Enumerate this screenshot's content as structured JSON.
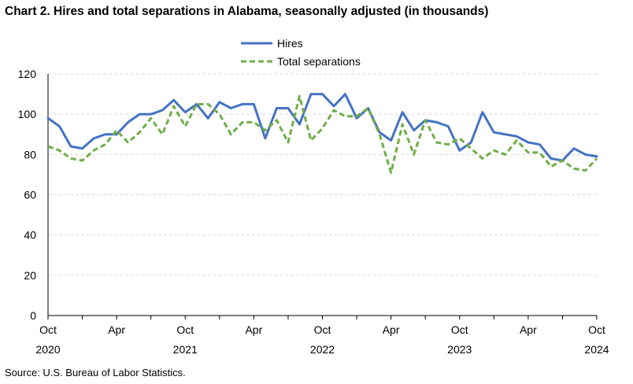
{
  "title": "Chart 2. Hires and total separations in Alabama, seasonally adjusted (in thousands)",
  "source": "Source: U.S. Bureau of Labor Statistics.",
  "chart_data": {
    "type": "line",
    "title": "Chart 2. Hires and total separations in Alabama, seasonally adjusted (in thousands)",
    "xlabel": "",
    "ylabel": "",
    "ylim": [
      0,
      120
    ],
    "yticks": [
      0,
      20,
      40,
      60,
      80,
      100,
      120
    ],
    "grid": "horizontal dashed",
    "legend_position": "top-center",
    "x_tick_labels": [
      {
        "index": 0,
        "month": "Oct",
        "year": "2020"
      },
      {
        "index": 6,
        "month": "Apr",
        "year": ""
      },
      {
        "index": 12,
        "month": "Oct",
        "year": "2021"
      },
      {
        "index": 18,
        "month": "Apr",
        "year": ""
      },
      {
        "index": 24,
        "month": "Oct",
        "year": "2022"
      },
      {
        "index": 30,
        "month": "Apr",
        "year": ""
      },
      {
        "index": 36,
        "month": "Oct",
        "year": "2023"
      },
      {
        "index": 42,
        "month": "Apr",
        "year": ""
      },
      {
        "index": 48,
        "month": "Oct",
        "year": "2024"
      }
    ],
    "x": [
      "2020-10",
      "2020-11",
      "2020-12",
      "2021-01",
      "2021-02",
      "2021-03",
      "2021-04",
      "2021-05",
      "2021-06",
      "2021-07",
      "2021-08",
      "2021-09",
      "2021-10",
      "2021-11",
      "2021-12",
      "2022-01",
      "2022-02",
      "2022-03",
      "2022-04",
      "2022-05",
      "2022-06",
      "2022-07",
      "2022-08",
      "2022-09",
      "2022-10",
      "2022-11",
      "2022-12",
      "2023-01",
      "2023-02",
      "2023-03",
      "2023-04",
      "2023-05",
      "2023-06",
      "2023-07",
      "2023-08",
      "2023-09",
      "2023-10",
      "2023-11",
      "2023-12",
      "2024-01",
      "2024-02",
      "2024-03",
      "2024-04",
      "2024-05",
      "2024-06",
      "2024-07",
      "2024-08",
      "2024-09",
      "2024-10"
    ],
    "series": [
      {
        "name": "Hires",
        "color": "#4472C4",
        "style": "solid",
        "values": [
          98,
          94,
          84,
          83,
          88,
          90,
          90,
          96,
          100,
          100,
          102,
          107,
          101,
          105,
          98,
          106,
          103,
          105,
          105,
          88,
          103,
          103,
          95,
          110,
          110,
          104,
          110,
          98,
          103,
          91,
          87,
          101,
          92,
          97,
          96,
          94,
          82,
          86,
          101,
          91,
          90,
          89,
          86,
          85,
          78,
          77,
          83,
          80,
          79
        ]
      },
      {
        "name": "Total separations",
        "color": "#70AD47",
        "style": "dashed",
        "values": [
          84,
          82,
          78,
          77,
          82,
          85,
          92,
          86,
          91,
          98,
          90,
          104,
          94,
          105,
          105,
          100,
          90,
          96,
          96,
          92,
          97,
          86,
          109,
          87,
          93,
          102,
          99,
          99,
          103,
          90,
          71,
          95,
          80,
          97,
          86,
          85,
          88,
          83,
          78,
          82,
          80,
          87,
          81,
          81,
          74,
          77,
          73,
          72,
          78
        ]
      }
    ]
  }
}
